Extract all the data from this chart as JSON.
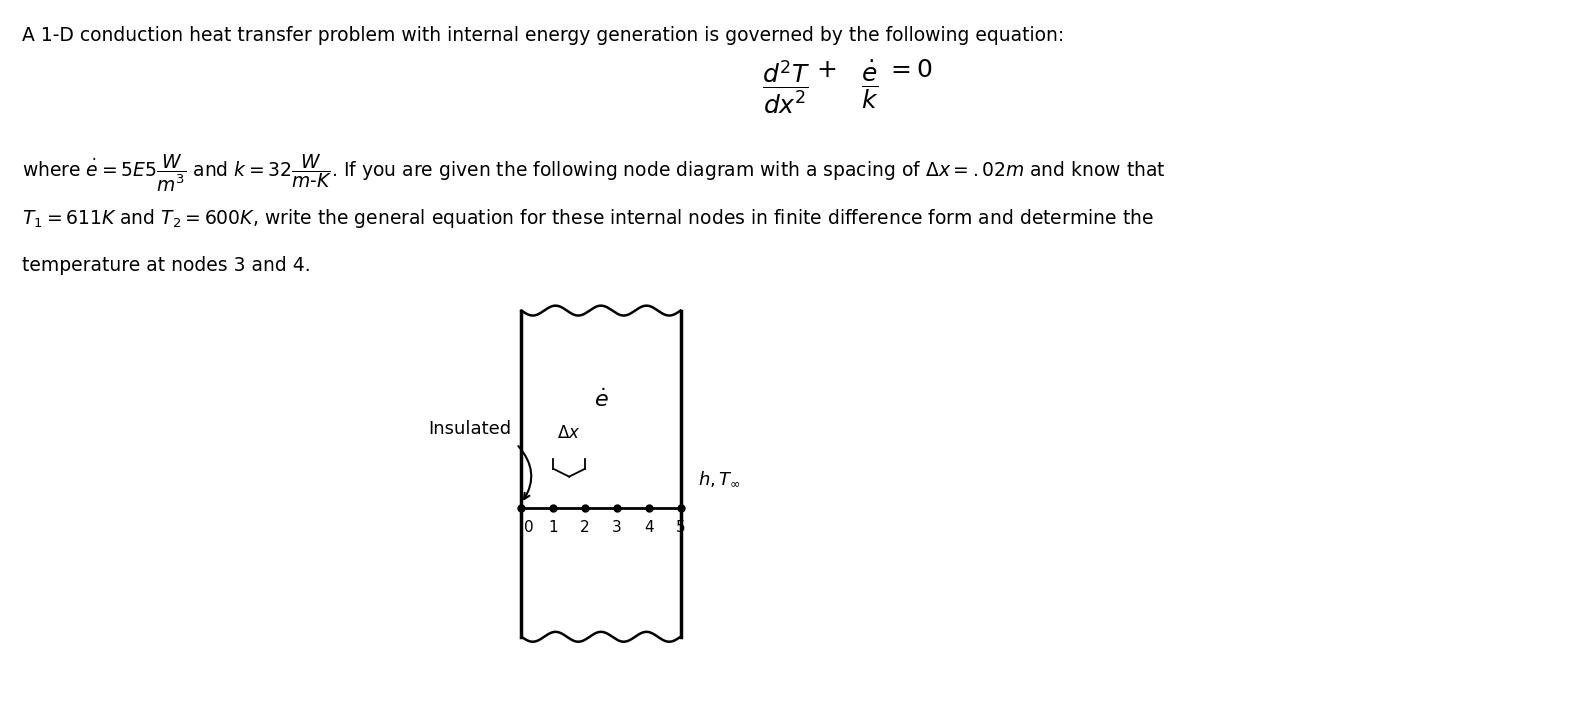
{
  "title_text": "A 1-D conduction heat transfer problem with internal energy generation is governed by the following equation:",
  "bg_color": "#ffffff",
  "text_color": "#000000",
  "node_labels": [
    "0",
    "1",
    "2",
    "3",
    "4",
    "5"
  ],
  "insulated_label": "Insulated",
  "delta_x_label": "$\\Delta x$",
  "e_dot_label": "$\\dot{e}$",
  "h_T_label": "$h, T_{\\infty}$",
  "title_fontsize": 13.5,
  "body_fontsize": 13.5,
  "eq_fontsize": 16,
  "diagram_label_fontsize": 13
}
